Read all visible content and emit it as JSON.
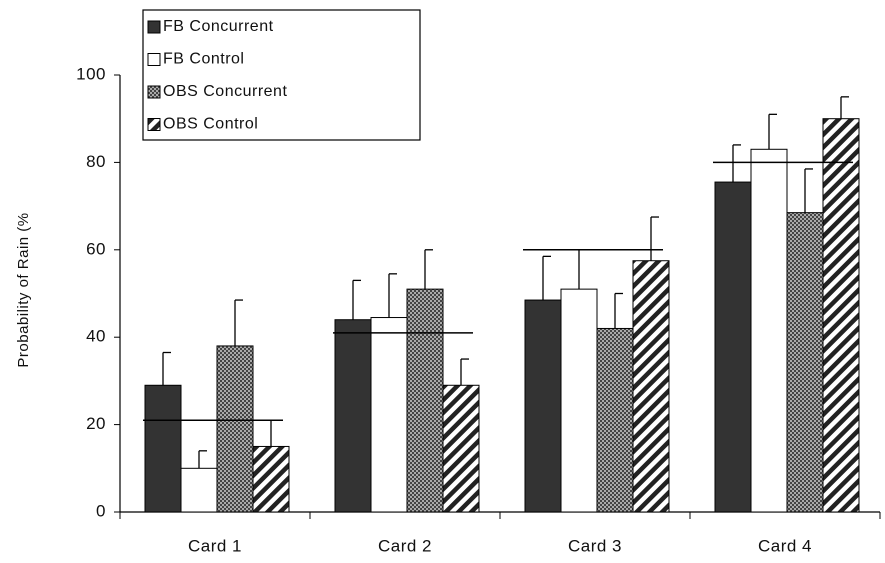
{
  "chart_data": {
    "type": "bar",
    "y_label": "Probability of Rain (%",
    "categories": [
      "Card 1",
      "Card 2",
      "Card 3",
      "Card 4"
    ],
    "series": [
      {
        "name": "FB Concurrent",
        "color": "#333333",
        "pattern": "solid",
        "values": [
          29,
          44,
          48.5,
          75.5
        ],
        "errors": [
          7.5,
          9,
          10,
          8.5
        ]
      },
      {
        "name": "FB Control",
        "color": "#ffffff",
        "pattern": "solid",
        "values": [
          10,
          44.5,
          51,
          83
        ],
        "errors": [
          4,
          10,
          9,
          8
        ]
      },
      {
        "name": "OBS Concurrent",
        "color": "#555555",
        "pattern": "crosshatch",
        "values": [
          38,
          51,
          42,
          68.5
        ],
        "errors": [
          10.5,
          9,
          8,
          10
        ]
      },
      {
        "name": "OBS Control",
        "color": "#222222",
        "pattern": "diagonal",
        "values": [
          15,
          29,
          57.5,
          90
        ],
        "errors": [
          6,
          6,
          10,
          5
        ]
      }
    ],
    "reference_lines": [
      21,
      41,
      60,
      80
    ],
    "ylim": [
      0,
      100
    ],
    "yticks": [
      0,
      20,
      40,
      60,
      80,
      100
    ]
  }
}
